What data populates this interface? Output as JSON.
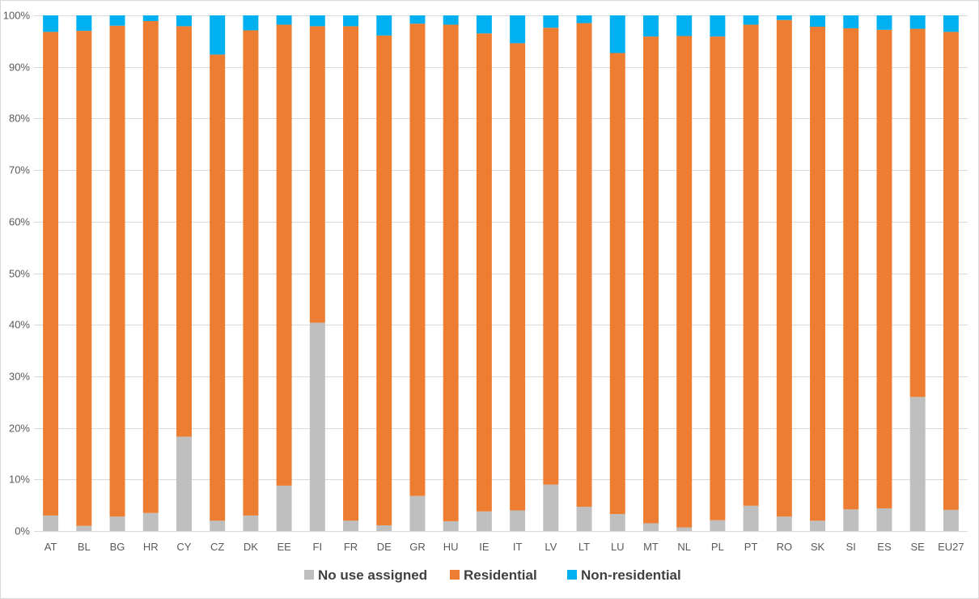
{
  "chart_data": {
    "type": "bar",
    "stacked": true,
    "percent": true,
    "title": "",
    "xlabel": "",
    "ylabel": "",
    "ylim": [
      0,
      100
    ],
    "yticks": [
      "0%",
      "10%",
      "20%",
      "30%",
      "40%",
      "50%",
      "60%",
      "70%",
      "80%",
      "90%",
      "100%"
    ],
    "grid": true,
    "legend_position": "bottom",
    "categories": [
      "AT",
      "BL",
      "BG",
      "HR",
      "CY",
      "CZ",
      "DK",
      "EE",
      "FI",
      "FR",
      "DE",
      "GR",
      "HU",
      "IE",
      "IT",
      "LV",
      "LT",
      "LU",
      "MT",
      "NL",
      "PL",
      "PT",
      "RO",
      "SK",
      "SI",
      "ES",
      "SE",
      "EU27"
    ],
    "series": [
      {
        "name": "No use assigned",
        "color": "#bfbfbf",
        "values": [
          3.0,
          1.0,
          2.8,
          3.5,
          18.3,
          2.0,
          3.0,
          8.8,
          40.4,
          2.0,
          1.1,
          6.8,
          1.9,
          3.8,
          4.0,
          9.0,
          4.7,
          3.3,
          1.5,
          0.7,
          2.1,
          4.9,
          2.8,
          2.0,
          4.2,
          4.4,
          26.0,
          4.1
        ]
      },
      {
        "name": "Residential",
        "color": "#ed7d31",
        "values": [
          93.8,
          96.0,
          95.2,
          95.4,
          79.6,
          90.4,
          94.1,
          89.4,
          57.5,
          95.9,
          95.0,
          91.6,
          96.3,
          92.7,
          90.6,
          88.6,
          93.8,
          89.4,
          94.4,
          95.3,
          93.8,
          93.3,
          96.3,
          95.8,
          93.3,
          92.8,
          71.4,
          92.7
        ]
      },
      {
        "name": "Non-residential",
        "color": "#00b0f0",
        "values": [
          3.2,
          3.0,
          2.0,
          1.1,
          2.1,
          7.6,
          2.9,
          1.8,
          2.1,
          2.1,
          3.9,
          1.6,
          1.8,
          3.5,
          5.4,
          2.4,
          1.5,
          7.3,
          4.1,
          4.0,
          4.1,
          1.8,
          0.9,
          2.2,
          2.5,
          2.8,
          2.6,
          3.2
        ]
      }
    ]
  }
}
